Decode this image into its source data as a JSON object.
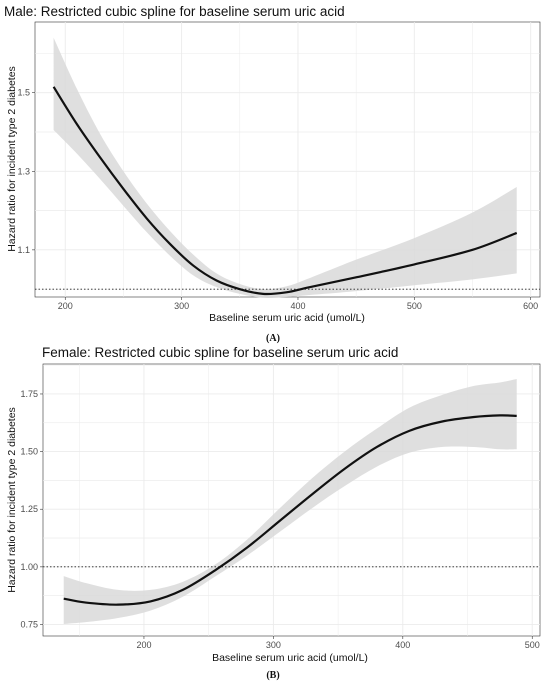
{
  "chart_data": [
    {
      "type": "line",
      "title": "Male: Restricted cubic spline for baseline serum uric acid",
      "xlabel": "Baseline serum uric acid (umol/L)",
      "ylabel": "Hazard ratio for incident type 2 diabetes",
      "panel_label": "(A)",
      "xlim": [
        174,
        608
      ],
      "ylim": [
        0.98,
        1.68
      ],
      "x_ticks": [
        200,
        300,
        400,
        500,
        600
      ],
      "y_ticks": [
        1.1,
        1.3,
        1.5
      ],
      "x_tick_labels": [
        "200",
        "300",
        "400",
        "500",
        "600"
      ],
      "y_tick_labels": [
        "1.1",
        "1.3",
        "1.5"
      ],
      "reference_line": 1.0,
      "grid": true,
      "series": [
        {
          "x": [
            190,
            210,
            230,
            250,
            270,
            290,
            310,
            330,
            350,
            370,
            390,
            410,
            450,
            500,
            550,
            588
          ],
          "y": [
            1.515,
            1.42,
            1.335,
            1.255,
            1.18,
            1.115,
            1.06,
            1.022,
            1.0,
            0.988,
            0.992,
            1.005,
            1.03,
            1.063,
            1.1,
            1.143
          ],
          "lower": [
            1.405,
            1.345,
            1.28,
            1.212,
            1.145,
            1.085,
            1.035,
            1.005,
            0.988,
            0.978,
            0.98,
            0.985,
            0.995,
            1.01,
            1.025,
            1.04
          ],
          "upper": [
            1.64,
            1.51,
            1.395,
            1.3,
            1.218,
            1.148,
            1.088,
            1.04,
            1.013,
            1.0,
            1.007,
            1.028,
            1.075,
            1.13,
            1.195,
            1.26
          ]
        }
      ]
    },
    {
      "type": "line",
      "title": "Female: Restricted cubic spline for baseline serum uric acid",
      "xlabel": "Baseline serum uric acid (umol/L)",
      "ylabel": "Hazard ratio for incident type 2 diabetes",
      "panel_label": "(B)",
      "xlim": [
        122,
        506
      ],
      "ylim": [
        0.7,
        1.88
      ],
      "x_ticks": [
        200,
        300,
        400,
        500
      ],
      "y_ticks": [
        0.75,
        1.0,
        1.25,
        1.5,
        1.75
      ],
      "x_tick_labels": [
        "200",
        "300",
        "400",
        "500"
      ],
      "y_tick_labels": [
        "0.75",
        "1.00",
        "1.25",
        "1.50",
        "1.75"
      ],
      "reference_line": 1.0,
      "grid": true,
      "series": [
        {
          "x": [
            138,
            155,
            180,
            205,
            230,
            255,
            280,
            305,
            330,
            355,
            380,
            405,
            430,
            455,
            475,
            488
          ],
          "y": [
            0.862,
            0.845,
            0.836,
            0.85,
            0.9,
            0.985,
            1.085,
            1.2,
            1.315,
            1.425,
            1.52,
            1.59,
            1.63,
            1.65,
            1.657,
            1.655
          ],
          "lower": [
            0.752,
            0.76,
            0.778,
            0.81,
            0.87,
            0.958,
            1.05,
            1.152,
            1.255,
            1.35,
            1.435,
            1.495,
            1.52,
            1.52,
            1.51,
            1.51
          ],
          "upper": [
            0.96,
            0.93,
            0.9,
            0.9,
            0.935,
            1.01,
            1.12,
            1.255,
            1.385,
            1.5,
            1.6,
            1.69,
            1.745,
            1.785,
            1.8,
            1.815
          ]
        }
      ]
    }
  ]
}
